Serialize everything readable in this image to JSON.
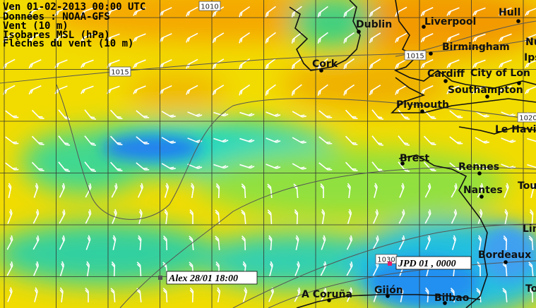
{
  "header": {
    "lines": [
      "Ven 01-02-2013 00:00 UTC",
      "Données : NOAA-GFS",
      "Vent (10 m)",
      "Isobares MSL (hPa)",
      "Flèches du vent (10 m)"
    ]
  },
  "isobar_labels": [
    "1010",
    "1015",
    "1015",
    "1020",
    "1030"
  ],
  "cities": [
    "Hull",
    "Dublin",
    "Liverpool",
    "Birmingham",
    "Nu",
    "Ips",
    "Cork",
    "Cardiff",
    "City of Lon",
    "Southampton",
    "Plymouth",
    "Le Havi",
    "Brest",
    "Rennes",
    "Nantes",
    "Tou",
    "Lim",
    "Bordeaux",
    "A Coruña",
    "Gijón",
    "Bilbao",
    "To"
  ],
  "boats": [
    "Alex 28/01 18:00",
    "JPD 01 , 0000"
  ]
}
